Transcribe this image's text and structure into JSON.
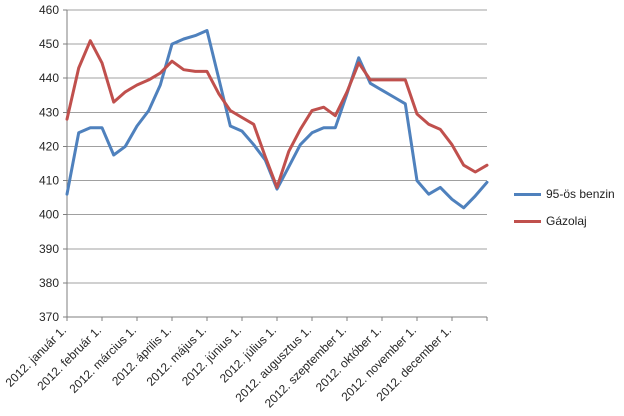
{
  "chart_data": {
    "type": "line",
    "title": "",
    "grid": true,
    "legend_position": "right",
    "background_color": "#ffffff",
    "gridline_color": "#a0a0a0",
    "axis_color": "#7f7f7f",
    "text_color": "#262626",
    "y_axis": {
      "min": 370,
      "max": 460,
      "step": 10,
      "tick_labels": [
        "370",
        "380",
        "390",
        "400",
        "410",
        "420",
        "430",
        "440",
        "450",
        "460"
      ]
    },
    "x_axis": {
      "labels": [
        "2012. január 1.",
        "2012. február 1.",
        "2012. március 1.",
        "2012. április 1.",
        "2012. május 1.",
        "2012. június 1.",
        "2012. július 1.",
        "2012. augusztus 1.",
        "2012. szeptember 1.",
        "2012. október 1.",
        "2012. november 1.",
        "2012. december 1."
      ],
      "points_per_labeled_month": 3
    },
    "series": [
      {
        "name": "95-ös benzin",
        "color": "#4F81BD",
        "values": [
          406,
          424,
          425.5,
          425.5,
          417.5,
          420,
          426,
          430.5,
          438,
          450,
          451.5,
          452.5,
          454,
          440,
          426,
          424.5,
          420.5,
          416,
          407.5,
          414,
          420.5,
          424,
          425.5,
          425.5,
          435.5,
          446,
          438.5,
          436.5,
          434.5,
          432.5,
          410,
          406,
          408,
          404.5,
          402,
          405.5,
          409.5
        ]
      },
      {
        "name": "Gázolaj",
        "color": "#C0504D",
        "values": [
          428,
          443,
          451,
          444.5,
          433,
          436,
          438,
          439.5,
          441.5,
          445,
          442.5,
          442,
          442,
          435.5,
          430.5,
          428.5,
          426.5,
          417,
          408,
          418.5,
          425,
          430.5,
          431.5,
          429,
          436,
          444.5,
          439.5,
          439.5,
          439.5,
          439.5,
          429.5,
          426.5,
          425,
          420.5,
          414.5,
          412.5,
          414.5
        ]
      }
    ]
  }
}
